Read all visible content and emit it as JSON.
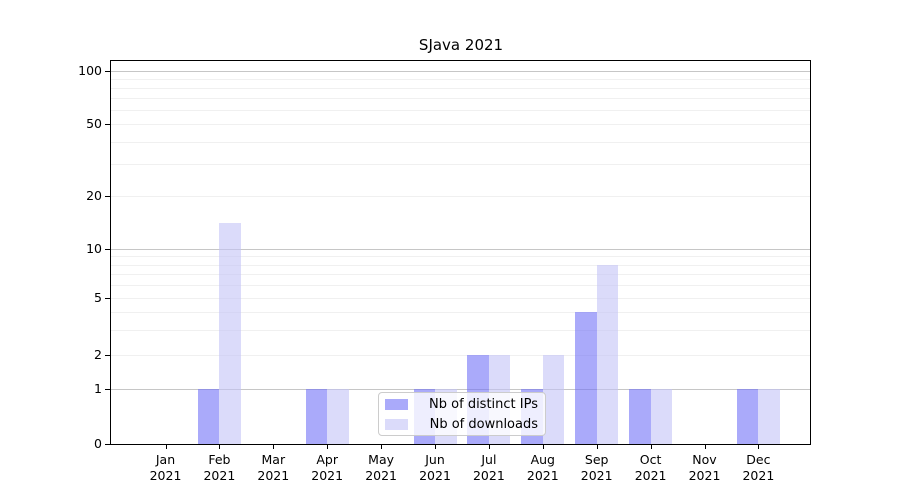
{
  "chart_data": {
    "type": "bar",
    "title": "SJava 2021",
    "x_categories": [
      {
        "month": "Jan",
        "year": "2021"
      },
      {
        "month": "Feb",
        "year": "2021"
      },
      {
        "month": "Mar",
        "year": "2021"
      },
      {
        "month": "Apr",
        "year": "2021"
      },
      {
        "month": "May",
        "year": "2021"
      },
      {
        "month": "Jun",
        "year": "2021"
      },
      {
        "month": "Jul",
        "year": "2021"
      },
      {
        "month": "Aug",
        "year": "2021"
      },
      {
        "month": "Sep",
        "year": "2021"
      },
      {
        "month": "Oct",
        "year": "2021"
      },
      {
        "month": "Nov",
        "year": "2021"
      },
      {
        "month": "Dec",
        "year": "2021"
      }
    ],
    "series": [
      {
        "name": "Nb of distinct IPs",
        "color": "#7171f7",
        "opacity": 0.6,
        "values": [
          0,
          1,
          0,
          1,
          0,
          1,
          2,
          1,
          4,
          1,
          0,
          1
        ]
      },
      {
        "name": "Nb of downloads",
        "color": "#c3c3f7",
        "opacity": 0.6,
        "values": [
          0,
          14,
          0,
          1,
          0,
          1,
          2,
          2,
          8,
          1,
          0,
          1
        ]
      }
    ],
    "y_axis": {
      "scale": "symlog",
      "ticks": [
        0,
        1,
        2,
        5,
        10,
        20,
        50,
        100
      ],
      "major_gridlines": [
        1,
        10,
        100
      ],
      "minor_gridlines": [
        2,
        3,
        4,
        5,
        6,
        7,
        8,
        9,
        20,
        30,
        40,
        50,
        60,
        70,
        80,
        90
      ],
      "range": [
        0,
        130
      ]
    },
    "grid": "horizontal",
    "legend_position": "lower center, inside plot",
    "colors": {
      "grid_minor": "#f0f0f0",
      "grid_major": "#c6c6c6",
      "axis": "#000000",
      "background": "#ffffff"
    }
  }
}
